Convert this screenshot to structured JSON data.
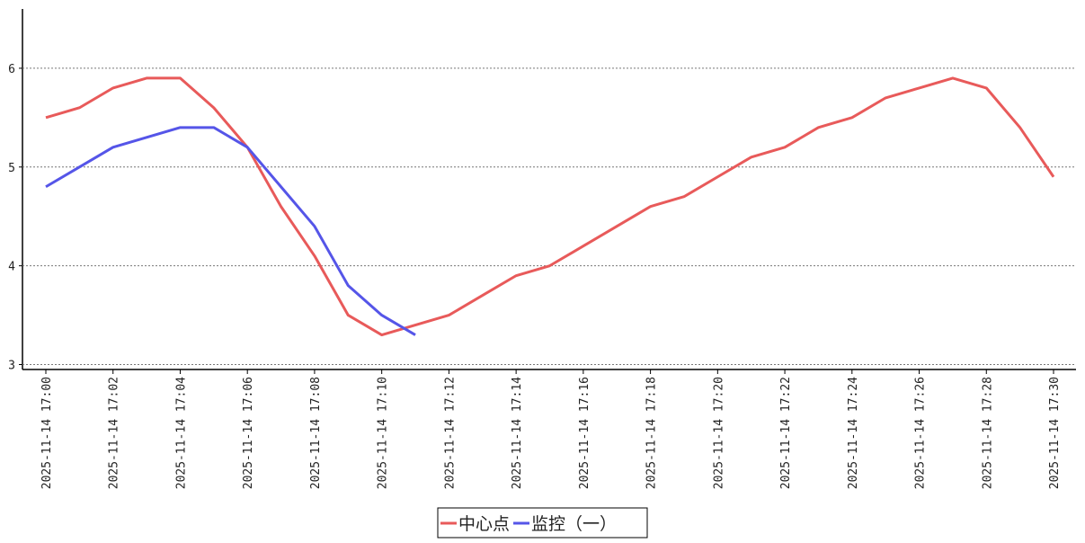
{
  "chart_data": {
    "type": "line",
    "categories": [
      "2025-11-14 17:00",
      null,
      "2025-11-14 17:02",
      null,
      "2025-11-14 17:04",
      null,
      "2025-11-14 17:06",
      null,
      "2025-11-14 17:08",
      null,
      "2025-11-14 17:10",
      null,
      "2025-11-14 17:12",
      null,
      "2025-11-14 17:14",
      null,
      "2025-11-14 17:16",
      null,
      "2025-11-14 17:18",
      null,
      "2025-11-14 17:20",
      null,
      "2025-11-14 17:22",
      null,
      "2025-11-14 17:24",
      null,
      "2025-11-14 17:26",
      null,
      "2025-11-14 17:28",
      null,
      "2025-11-14 17:30"
    ],
    "series": [
      {
        "name": "中心点",
        "color": "#e85a5a",
        "values": [
          5.5,
          5.6,
          5.8,
          5.9,
          5.9,
          5.6,
          5.2,
          4.6,
          4.1,
          3.5,
          3.3,
          3.4,
          3.5,
          3.7,
          3.9,
          4.0,
          4.2,
          4.4,
          4.6,
          4.7,
          4.9,
          5.1,
          5.2,
          5.4,
          5.5,
          5.7,
          5.8,
          5.9,
          5.8,
          5.4,
          4.9
        ]
      },
      {
        "name": "监控（一）",
        "color": "#5555e8",
        "values": [
          4.8,
          5.0,
          5.2,
          5.3,
          5.4,
          5.4,
          5.2,
          4.8,
          4.4,
          3.8,
          3.5,
          3.3,
          null,
          null,
          null,
          null,
          null,
          null,
          null,
          null,
          null,
          null,
          null,
          null,
          null,
          null,
          null,
          null,
          null,
          null,
          null
        ]
      }
    ],
    "ylim": [
      2.95,
      6.6
    ],
    "yticks": [
      3,
      4,
      5,
      6
    ],
    "grid": true,
    "legend": "bottom"
  }
}
